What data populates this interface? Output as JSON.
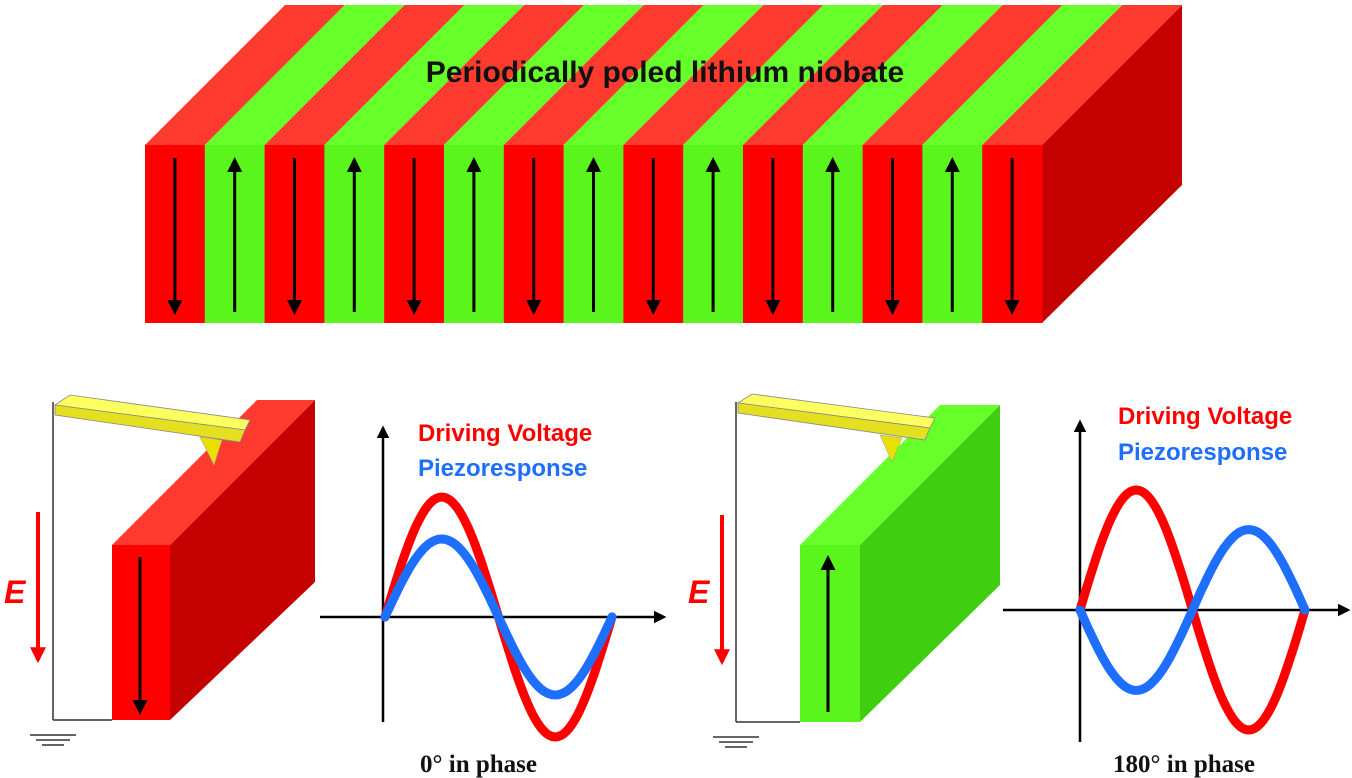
{
  "title": "Periodically poled lithium niobate",
  "colors": {
    "red": "#ff0000",
    "red_top": "#ff3b30",
    "red_side": "#c40000",
    "green": "#59f51c",
    "green_top": "#66ff2a",
    "green_side": "#3fcf10",
    "blue": "#1e6fff",
    "yellow": "#f4f020"
  },
  "domains": [
    "down",
    "up",
    "down",
    "up",
    "down",
    "up",
    "down",
    "up",
    "down",
    "up",
    "down",
    "up",
    "down",
    "up",
    "down"
  ],
  "left_panel": {
    "field_label": "E",
    "legend": {
      "driving": "Driving Voltage",
      "response": "Piezoresponse"
    },
    "caption": "0° in phase",
    "domain": "down",
    "phase_deg": 0,
    "drive_amplitude": 1.0,
    "response_amplitude": 0.65
  },
  "right_panel": {
    "field_label": "E",
    "legend": {
      "driving": "Driving Voltage",
      "response": "Piezoresponse"
    },
    "caption": "180° in phase",
    "domain": "up",
    "phase_deg": 180,
    "drive_amplitude": 1.0,
    "response_amplitude": 0.67
  }
}
